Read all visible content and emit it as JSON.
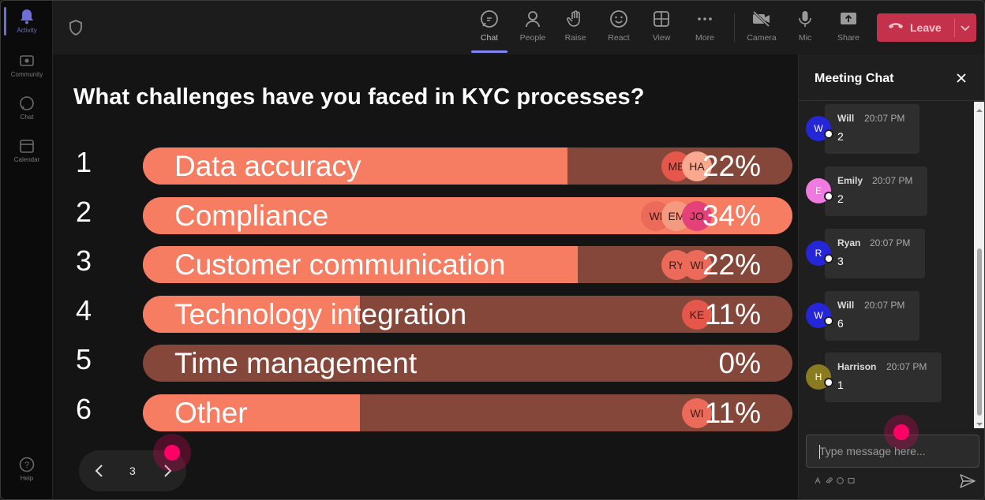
{
  "rail": {
    "items": [
      {
        "label": "Activity",
        "active": true
      },
      {
        "label": "Community",
        "active": false
      },
      {
        "label": "Chat",
        "active": false
      },
      {
        "label": "Calendar",
        "active": false
      },
      {
        "label": "Help",
        "active": false
      }
    ]
  },
  "toolbar": {
    "chat": "Chat",
    "people": "People",
    "raise": "Raise",
    "react": "React",
    "view": "View",
    "more": "More",
    "camera": "Camera",
    "mic": "Mic",
    "share": "Share",
    "leave": "Leave"
  },
  "poll": {
    "question": "What challenges have you faced in KYC processes?",
    "options": [
      {
        "num": "1",
        "label": "Data accuracy",
        "pct": "22%",
        "fill": 0.654,
        "voters": [
          "ME",
          "HA"
        ]
      },
      {
        "num": "2",
        "label": "Compliance",
        "pct": "34%",
        "fill": 1.0,
        "voters": [
          "WI",
          "EM",
          "JO"
        ]
      },
      {
        "num": "3",
        "label": "Customer communication",
        "pct": "22%",
        "fill": 0.669,
        "voters": [
          "RY",
          "WI"
        ]
      },
      {
        "num": "4",
        "label": "Technology integration",
        "pct": "11%",
        "fill": 0.334,
        "voters": [
          "KE"
        ]
      },
      {
        "num": "5",
        "label": "Time management",
        "pct": "0%",
        "fill": 0.0,
        "voters": []
      },
      {
        "num": "6",
        "label": "Other",
        "pct": "11%",
        "fill": 0.334,
        "voters": [
          "WI"
        ]
      }
    ],
    "page": "3"
  },
  "chat": {
    "title": "Meeting Chat",
    "messages": [
      {
        "initial": "W",
        "name": "Will",
        "time": "20:07 PM",
        "text": "2",
        "color": "#2626d9"
      },
      {
        "initial": "E",
        "name": "Emily",
        "time": "20:07 PM",
        "text": "2",
        "color": "#f07ae0"
      },
      {
        "initial": "R",
        "name": "Ryan",
        "time": "20:07 PM",
        "text": "3",
        "color": "#2626d9"
      },
      {
        "initial": "W",
        "name": "Will",
        "time": "20:07 PM",
        "text": "6",
        "color": "#2626d9"
      },
      {
        "initial": "H",
        "name": "Harrison",
        "time": "20:07 PM",
        "text": "1",
        "color": "#8a7a20"
      }
    ],
    "placeholder": "Type message here..."
  },
  "colors": {
    "bar_bg": "#85473a",
    "bar_fill": "#f77d62",
    "leave": "#c4314b",
    "accent": "#7f85f5"
  },
  "icons": [
    "activity-bell-icon",
    "community-icon",
    "chat-icon",
    "calendar-icon",
    "help-icon",
    "shield-icon",
    "people-icon",
    "raise-hand-icon",
    "react-smile-icon",
    "view-grid-icon",
    "more-dots-icon",
    "camera-off-icon",
    "mic-icon",
    "share-icon",
    "phone-hangup-icon",
    "chevron-down-icon",
    "close-icon",
    "send-icon"
  ]
}
